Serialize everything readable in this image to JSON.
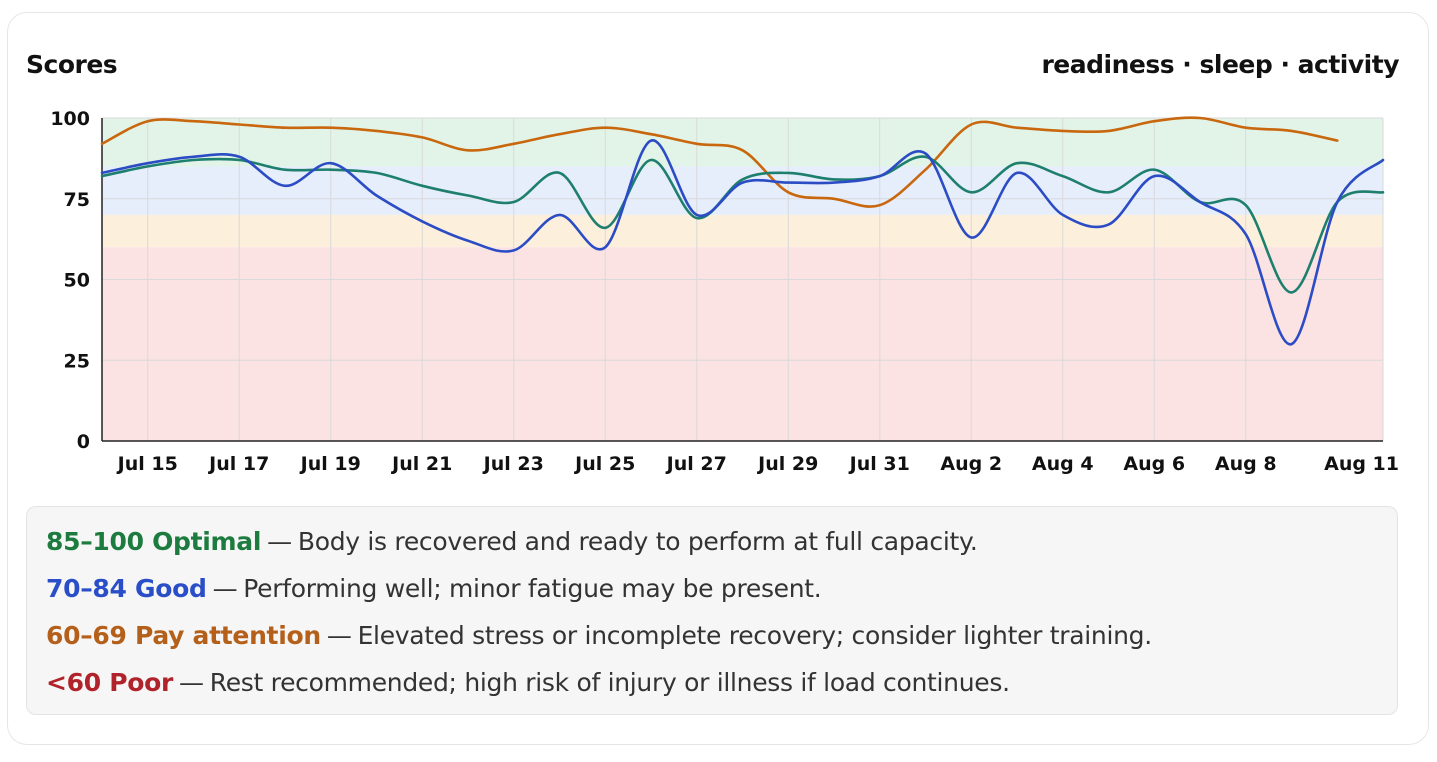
{
  "header": {
    "title": "Scores",
    "subtitle": "readiness · sleep · activity"
  },
  "chart_data": {
    "type": "line",
    "ylim": [
      0,
      100
    ],
    "xlim": [
      "2025-07-14",
      "2025-08-11"
    ],
    "y_ticks": [
      "0",
      "25",
      "50",
      "75",
      "100"
    ],
    "x_ticks": [
      {
        "date": "2025-07-15",
        "label": "Jul 15"
      },
      {
        "date": "2025-07-17",
        "label": "Jul 17"
      },
      {
        "date": "2025-07-19",
        "label": "Jul 19"
      },
      {
        "date": "2025-07-21",
        "label": "Jul 21"
      },
      {
        "date": "2025-07-23",
        "label": "Jul 23"
      },
      {
        "date": "2025-07-25",
        "label": "Jul 25"
      },
      {
        "date": "2025-07-27",
        "label": "Jul 27"
      },
      {
        "date": "2025-07-29",
        "label": "Jul 29"
      },
      {
        "date": "2025-07-31",
        "label": "Jul 31"
      },
      {
        "date": "2025-08-02",
        "label": "Aug 2"
      },
      {
        "date": "2025-08-04",
        "label": "Aug 4"
      },
      {
        "date": "2025-08-06",
        "label": "Aug 6"
      },
      {
        "date": "2025-08-08",
        "label": "Aug 8"
      },
      {
        "date": "2025-08-11",
        "label": "Aug 11"
      }
    ],
    "bands": [
      {
        "from": 85,
        "to": 100,
        "color": "#e2f4e8"
      },
      {
        "from": 70,
        "to": 85,
        "color": "#e6eefc"
      },
      {
        "from": 60,
        "to": 70,
        "color": "#fcefdc"
      },
      {
        "from": 0,
        "to": 60,
        "color": "#fbe2e3"
      }
    ],
    "grid": true,
    "x": [
      "2025-07-14",
      "2025-07-15",
      "2025-07-16",
      "2025-07-17",
      "2025-07-18",
      "2025-07-19",
      "2025-07-20",
      "2025-07-21",
      "2025-07-22",
      "2025-07-23",
      "2025-07-24",
      "2025-07-25",
      "2025-07-26",
      "2025-07-27",
      "2025-07-28",
      "2025-07-29",
      "2025-07-30",
      "2025-07-31",
      "2025-08-01",
      "2025-08-02",
      "2025-08-03",
      "2025-08-04",
      "2025-08-05",
      "2025-08-06",
      "2025-08-07",
      "2025-08-08",
      "2025-08-09",
      "2025-08-10",
      "2025-08-11"
    ],
    "series": [
      {
        "color": "#c8670d",
        "values": [
          92,
          99,
          99,
          98,
          97,
          97,
          96,
          94,
          90,
          92,
          95,
          97,
          95,
          92,
          90,
          77,
          75,
          73,
          84,
          98,
          97,
          96,
          96,
          99,
          100,
          97,
          96,
          93,
          null
        ]
      },
      {
        "color": "#1e7f6e",
        "values": [
          82,
          85,
          87,
          87,
          84,
          84,
          83,
          79,
          76,
          74,
          83,
          66,
          87,
          69,
          81,
          83,
          81,
          82,
          88,
          77,
          86,
          82,
          77,
          84,
          74,
          73,
          46,
          74,
          77
        ]
      },
      {
        "color": "#2b4cc4",
        "values": [
          83,
          86,
          88,
          88,
          79,
          86,
          76,
          68,
          62,
          59,
          70,
          60,
          93,
          70,
          80,
          80,
          80,
          82,
          89,
          63,
          83,
          70,
          67,
          82,
          74,
          64,
          30,
          74,
          87
        ]
      }
    ]
  },
  "legend": [
    {
      "range": "85–100 Optimal",
      "color": "#1e7b3f",
      "text": "Body is recovered and ready to perform at full capacity."
    },
    {
      "range": "70–84 Good",
      "color": "#2a4ec8",
      "text": "Performing well; minor fatigue may be present."
    },
    {
      "range": "60–69 Pay attention",
      "color": "#b4601a",
      "text": "Elevated stress or incomplete recovery; consider lighter training."
    },
    {
      "range": "<60 Poor",
      "color": "#b0232a",
      "text": "Rest recommended; high risk of injury or illness if load continues."
    }
  ],
  "dash": "—"
}
